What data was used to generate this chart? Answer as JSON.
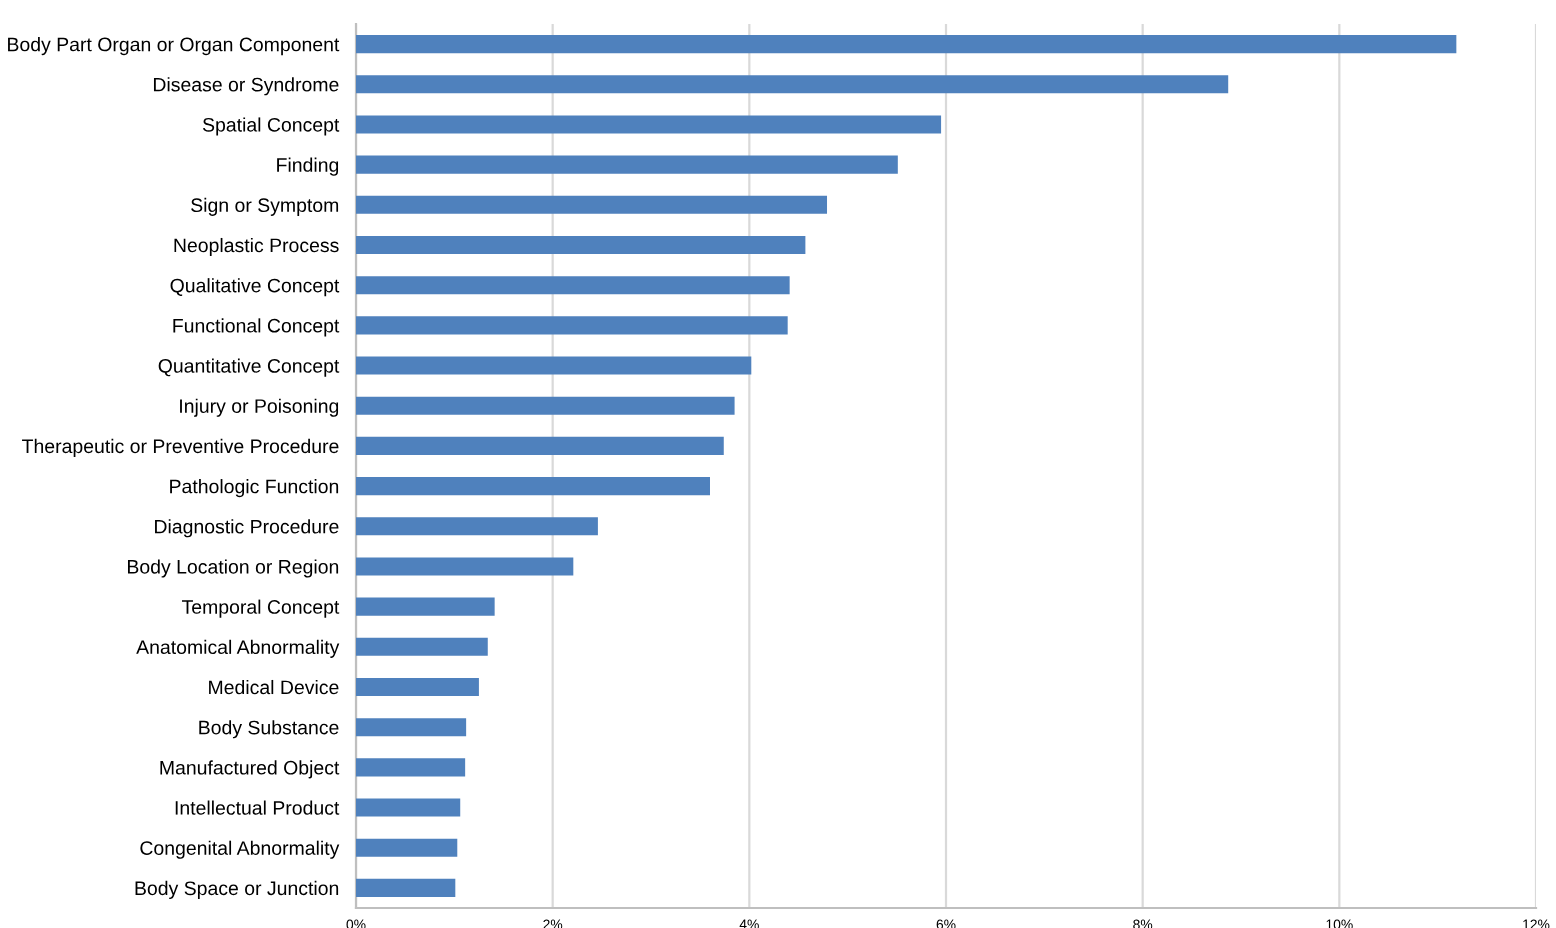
{
  "chart_data": {
    "type": "bar",
    "orientation": "horizontal",
    "categories": [
      "Body Part Organ or Organ Component",
      "Disease or Syndrome",
      "Spatial Concept",
      "Finding",
      "Sign or Symptom",
      "Neoplastic Process",
      "Qualitative Concept",
      "Functional Concept",
      "Quantitative Concept",
      "Injury or Poisoning",
      "Therapeutic or Preventive Procedure",
      "Pathologic Function",
      "Diagnostic Procedure",
      "Body Location or Region",
      "Temporal Concept",
      "Anatomical Abnormality",
      "Medical Device",
      "Body Substance",
      "Manufactured Object",
      "Intellectual Product",
      "Congenital Abnormality",
      "Body Space or Junction"
    ],
    "values": [
      11.19,
      8.87,
      5.95,
      5.51,
      4.79,
      4.57,
      4.41,
      4.39,
      4.02,
      3.85,
      3.74,
      3.6,
      2.46,
      2.21,
      1.41,
      1.34,
      1.25,
      1.12,
      1.11,
      1.06,
      1.03,
      1.01
    ],
    "color": "#4f81bd",
    "xlim": [
      0,
      12
    ],
    "xticks": [
      {
        "value": 0,
        "label": "0%"
      },
      {
        "value": 2,
        "label": "2%"
      },
      {
        "value": 4,
        "label": "4%"
      },
      {
        "value": 6,
        "label": "6%"
      },
      {
        "value": 8,
        "label": "8%"
      },
      {
        "value": 10,
        "label": "10%"
      },
      {
        "value": 12,
        "label": "12%"
      }
    ],
    "grid": "x"
  }
}
